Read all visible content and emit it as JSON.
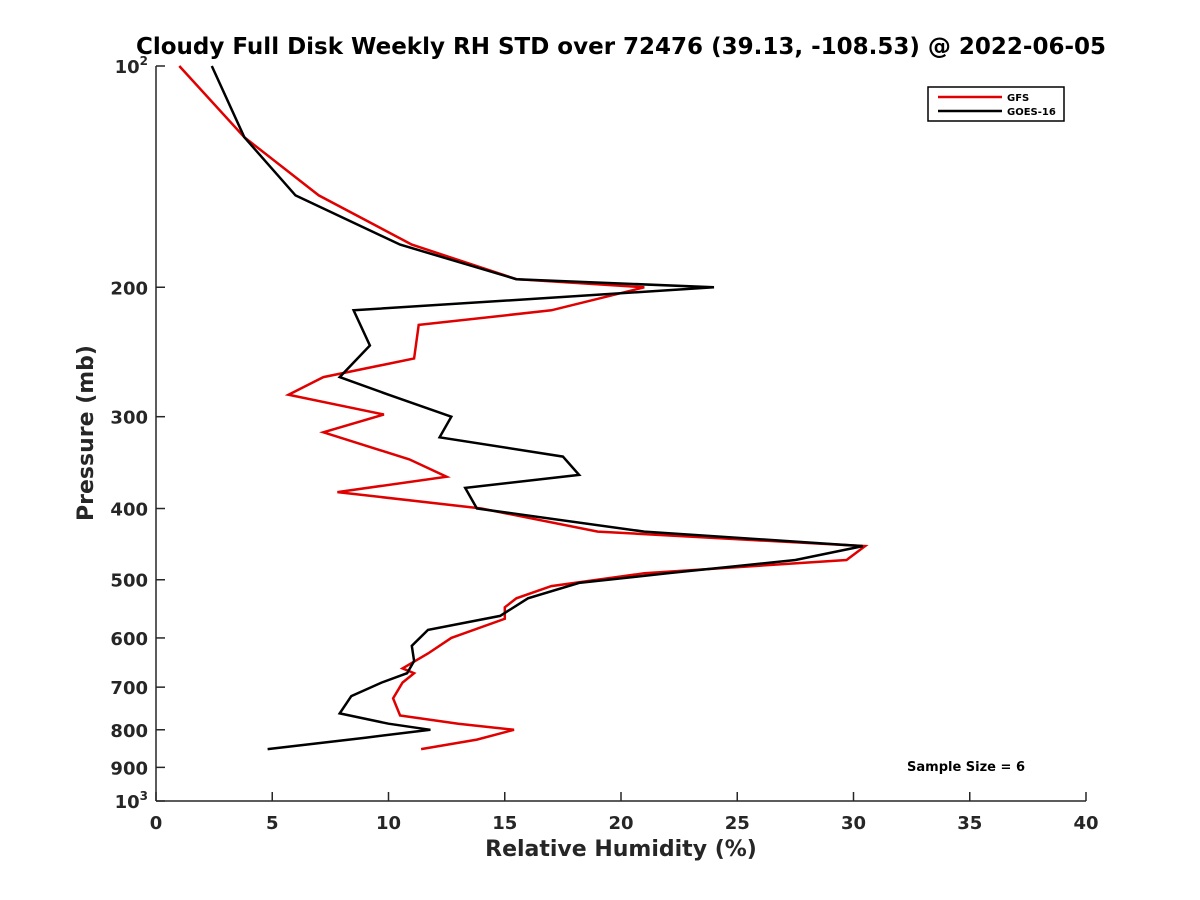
{
  "chart_data": {
    "type": "line",
    "title": "Cloudy Full Disk Weekly RH STD over 72476 (39.13, -108.53) @ 2022-06-05",
    "xlabel": "Relative Humidity (%)",
    "ylabel": "Pressure (mb)",
    "xlim": [
      0,
      40
    ],
    "ylim": [
      100,
      1000
    ],
    "yscale": "log",
    "y_reversed": true,
    "grid": false,
    "legend_position": "top-right",
    "x_ticks": [
      0,
      5,
      10,
      15,
      20,
      25,
      30,
      35,
      40
    ],
    "y_ticks": [
      {
        "value": 100,
        "base": "10",
        "exp": "2"
      },
      {
        "value": 200,
        "label": "200"
      },
      {
        "value": 300,
        "label": "300"
      },
      {
        "value": 400,
        "label": "400"
      },
      {
        "value": 500,
        "label": "500"
      },
      {
        "value": 600,
        "label": "600"
      },
      {
        "value": 700,
        "label": "700"
      },
      {
        "value": 800,
        "label": "800"
      },
      {
        "value": 900,
        "label": "900"
      },
      {
        "value": 1000,
        "base": "10",
        "exp": "3"
      }
    ],
    "series": [
      {
        "name": "GFS",
        "color": "#e00000",
        "points": [
          [
            1.0,
            100
          ],
          [
            3.8,
            125
          ],
          [
            7.0,
            150
          ],
          [
            11.0,
            175
          ],
          [
            15.5,
            195
          ],
          [
            21.0,
            200
          ],
          [
            17.0,
            215
          ],
          [
            11.3,
            225
          ],
          [
            11.1,
            250
          ],
          [
            7.2,
            265
          ],
          [
            5.7,
            280
          ],
          [
            9.8,
            298
          ],
          [
            7.2,
            315
          ],
          [
            10.9,
            343
          ],
          [
            12.5,
            362
          ],
          [
            7.8,
            380
          ],
          [
            14.0,
            400
          ],
          [
            19.0,
            430
          ],
          [
            30.5,
            450
          ],
          [
            29.7,
            470
          ],
          [
            21.0,
            490
          ],
          [
            17.0,
            510
          ],
          [
            15.5,
            530
          ],
          [
            15.0,
            545
          ],
          [
            15.0,
            565
          ],
          [
            12.7,
            600
          ],
          [
            11.7,
            630
          ],
          [
            10.6,
            660
          ],
          [
            11.1,
            670
          ],
          [
            10.6,
            690
          ],
          [
            10.2,
            725
          ],
          [
            10.5,
            765
          ],
          [
            13.0,
            785
          ],
          [
            15.4,
            800
          ],
          [
            13.8,
            825
          ],
          [
            11.4,
            850
          ]
        ]
      },
      {
        "name": "GOES-16",
        "color": "#000000",
        "points": [
          [
            2.4,
            100
          ],
          [
            3.8,
            125
          ],
          [
            6.0,
            150
          ],
          [
            10.5,
            175
          ],
          [
            15.5,
            195
          ],
          [
            24.0,
            200
          ],
          [
            8.5,
            215
          ],
          [
            9.2,
            240
          ],
          [
            7.9,
            265
          ],
          [
            10.0,
            280
          ],
          [
            12.7,
            300
          ],
          [
            12.2,
            320
          ],
          [
            17.5,
            340
          ],
          [
            18.2,
            360
          ],
          [
            13.3,
            375
          ],
          [
            13.8,
            400
          ],
          [
            21.0,
            430
          ],
          [
            30.4,
            450
          ],
          [
            27.5,
            470
          ],
          [
            22.0,
            490
          ],
          [
            18.2,
            505
          ],
          [
            16.0,
            530
          ],
          [
            14.8,
            560
          ],
          [
            11.7,
            585
          ],
          [
            11.0,
            615
          ],
          [
            11.1,
            645
          ],
          [
            10.8,
            670
          ],
          [
            9.7,
            690
          ],
          [
            8.4,
            720
          ],
          [
            7.9,
            760
          ],
          [
            10.0,
            785
          ],
          [
            11.8,
            800
          ],
          [
            9.0,
            820
          ],
          [
            4.8,
            850
          ]
        ]
      }
    ],
    "annotation": "Sample Size = 6"
  }
}
